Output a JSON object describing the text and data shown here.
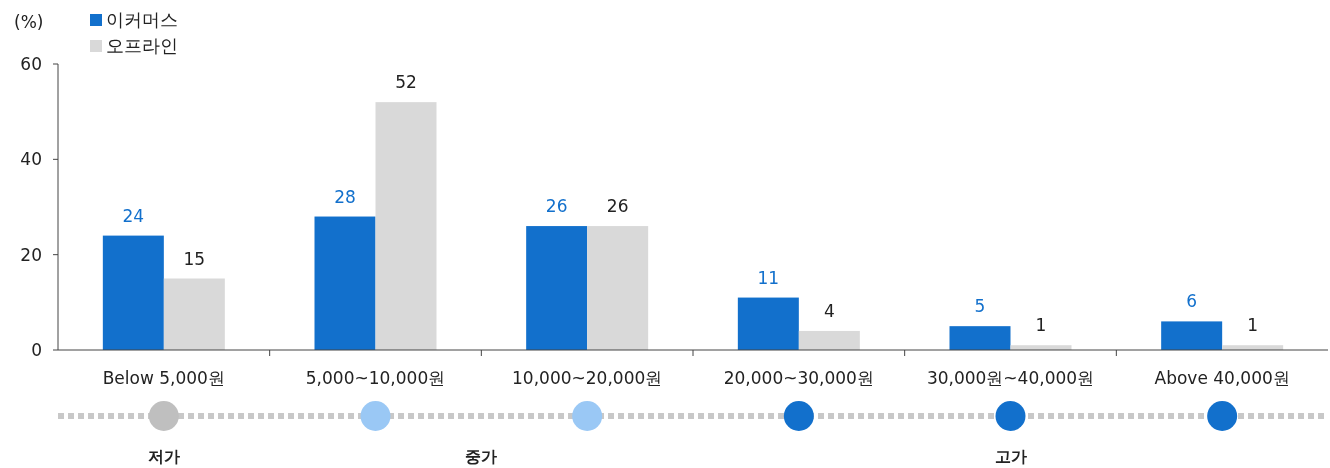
{
  "chart_data": {
    "type": "bar",
    "ylabel": "(%)",
    "categories": [
      "Below 5,000원",
      "5,000~10,000원",
      "10,000~20,000원",
      "20,000~30,000원",
      "30,000원~40,000원",
      "Above 40,000원"
    ],
    "series": [
      {
        "name": "이커머스",
        "color": "#1270cc",
        "values": [
          24,
          28,
          26,
          11,
          5,
          6
        ]
      },
      {
        "name": "오프라인",
        "color": "#d9d9d9",
        "values": [
          15,
          52,
          26,
          4,
          1,
          1
        ]
      }
    ],
    "ylim": [
      0,
      60
    ],
    "yticks": [
      0,
      20,
      40,
      60
    ],
    "grid": false,
    "legend": "top left",
    "data_labels": true,
    "annotations": [
      "저가",
      "중가",
      "고가"
    ]
  }
}
